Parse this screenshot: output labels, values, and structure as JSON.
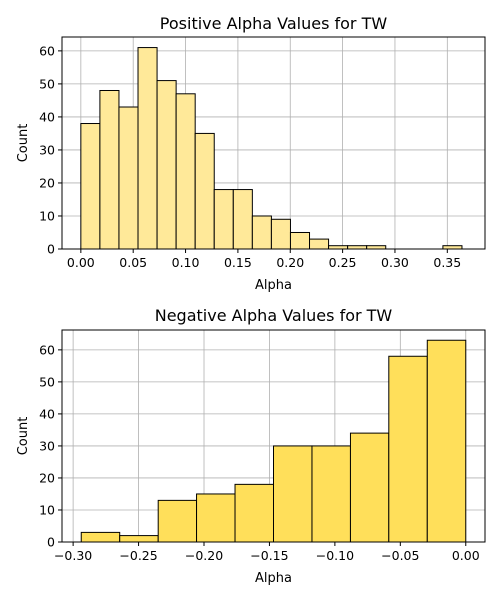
{
  "chart_data": [
    {
      "type": "bar",
      "title": "Positive Alpha Values for TW",
      "xlabel": "Alpha",
      "ylabel": "Count",
      "bar_color": "#ffe999",
      "edge_color": "#000000",
      "grid": true,
      "xlim": [
        -0.018,
        0.386
      ],
      "ylim": [
        0,
        64.2
      ],
      "xticks": [
        {
          "value": 0.0,
          "label": "0.00"
        },
        {
          "value": 0.05,
          "label": "0.05"
        },
        {
          "value": 0.1,
          "label": "0.10"
        },
        {
          "value": 0.15,
          "label": "0.15"
        },
        {
          "value": 0.2,
          "label": "0.20"
        },
        {
          "value": 0.25,
          "label": "0.25"
        },
        {
          "value": 0.3,
          "label": "0.30"
        },
        {
          "value": 0.35,
          "label": "0.35"
        }
      ],
      "yticks": [
        {
          "value": 0,
          "label": "0"
        },
        {
          "value": 10,
          "label": "10"
        },
        {
          "value": 20,
          "label": "20"
        },
        {
          "value": 30,
          "label": "30"
        },
        {
          "value": 40,
          "label": "40"
        },
        {
          "value": 50,
          "label": "50"
        },
        {
          "value": 60,
          "label": "60"
        }
      ],
      "bins": [
        {
          "x0": 0.0,
          "x1": 0.0182,
          "count": 38
        },
        {
          "x0": 0.0182,
          "x1": 0.0364,
          "count": 48
        },
        {
          "x0": 0.0364,
          "x1": 0.0546,
          "count": 43
        },
        {
          "x0": 0.0546,
          "x1": 0.0728,
          "count": 61
        },
        {
          "x0": 0.0728,
          "x1": 0.091,
          "count": 51
        },
        {
          "x0": 0.091,
          "x1": 0.1092,
          "count": 47
        },
        {
          "x0": 0.1092,
          "x1": 0.1274,
          "count": 35
        },
        {
          "x0": 0.1274,
          "x1": 0.1456,
          "count": 18
        },
        {
          "x0": 0.1456,
          "x1": 0.1638,
          "count": 18
        },
        {
          "x0": 0.1638,
          "x1": 0.182,
          "count": 10
        },
        {
          "x0": 0.182,
          "x1": 0.2002,
          "count": 9
        },
        {
          "x0": 0.2002,
          "x1": 0.2184,
          "count": 5
        },
        {
          "x0": 0.2184,
          "x1": 0.2366,
          "count": 3
        },
        {
          "x0": 0.2366,
          "x1": 0.2548,
          "count": 1
        },
        {
          "x0": 0.2548,
          "x1": 0.273,
          "count": 1
        },
        {
          "x0": 0.273,
          "x1": 0.2912,
          "count": 1
        },
        {
          "x0": 0.2912,
          "x1": 0.3094,
          "count": 0
        },
        {
          "x0": 0.3094,
          "x1": 0.3276,
          "count": 0
        },
        {
          "x0": 0.3276,
          "x1": 0.3458,
          "count": 0
        },
        {
          "x0": 0.3458,
          "x1": 0.364,
          "count": 1
        }
      ]
    },
    {
      "type": "bar",
      "title": "Negative Alpha Values for TW",
      "xlabel": "Alpha",
      "ylabel": "Count",
      "bar_color": "#ffdf5a",
      "edge_color": "#000000",
      "grid": true,
      "xlim": [
        -0.3085,
        0.0147
      ],
      "ylim": [
        0,
        66.2
      ],
      "xticks": [
        {
          "value": -0.3,
          "label": "−0.30"
        },
        {
          "value": -0.25,
          "label": "−0.25"
        },
        {
          "value": -0.2,
          "label": "−0.20"
        },
        {
          "value": -0.15,
          "label": "−0.15"
        },
        {
          "value": -0.1,
          "label": "−0.10"
        },
        {
          "value": -0.05,
          "label": "−0.05"
        },
        {
          "value": 0.0,
          "label": "0.00"
        }
      ],
      "yticks": [
        {
          "value": 0,
          "label": "0"
        },
        {
          "value": 10,
          "label": "10"
        },
        {
          "value": 20,
          "label": "20"
        },
        {
          "value": 30,
          "label": "30"
        },
        {
          "value": 40,
          "label": "40"
        },
        {
          "value": 50,
          "label": "50"
        },
        {
          "value": 60,
          "label": "60"
        }
      ],
      "bins": [
        {
          "x0": -0.2938,
          "x1": -0.2644,
          "count": 3
        },
        {
          "x0": -0.2644,
          "x1": -0.235,
          "count": 2
        },
        {
          "x0": -0.235,
          "x1": -0.2057,
          "count": 13
        },
        {
          "x0": -0.2057,
          "x1": -0.1763,
          "count": 15
        },
        {
          "x0": -0.1763,
          "x1": -0.1469,
          "count": 18
        },
        {
          "x0": -0.1469,
          "x1": -0.1175,
          "count": 30
        },
        {
          "x0": -0.1175,
          "x1": -0.0881,
          "count": 30
        },
        {
          "x0": -0.0881,
          "x1": -0.0588,
          "count": 34
        },
        {
          "x0": -0.0588,
          "x1": -0.0294,
          "count": 58
        },
        {
          "x0": -0.0294,
          "x1": 0.0,
          "count": 63
        }
      ]
    }
  ]
}
